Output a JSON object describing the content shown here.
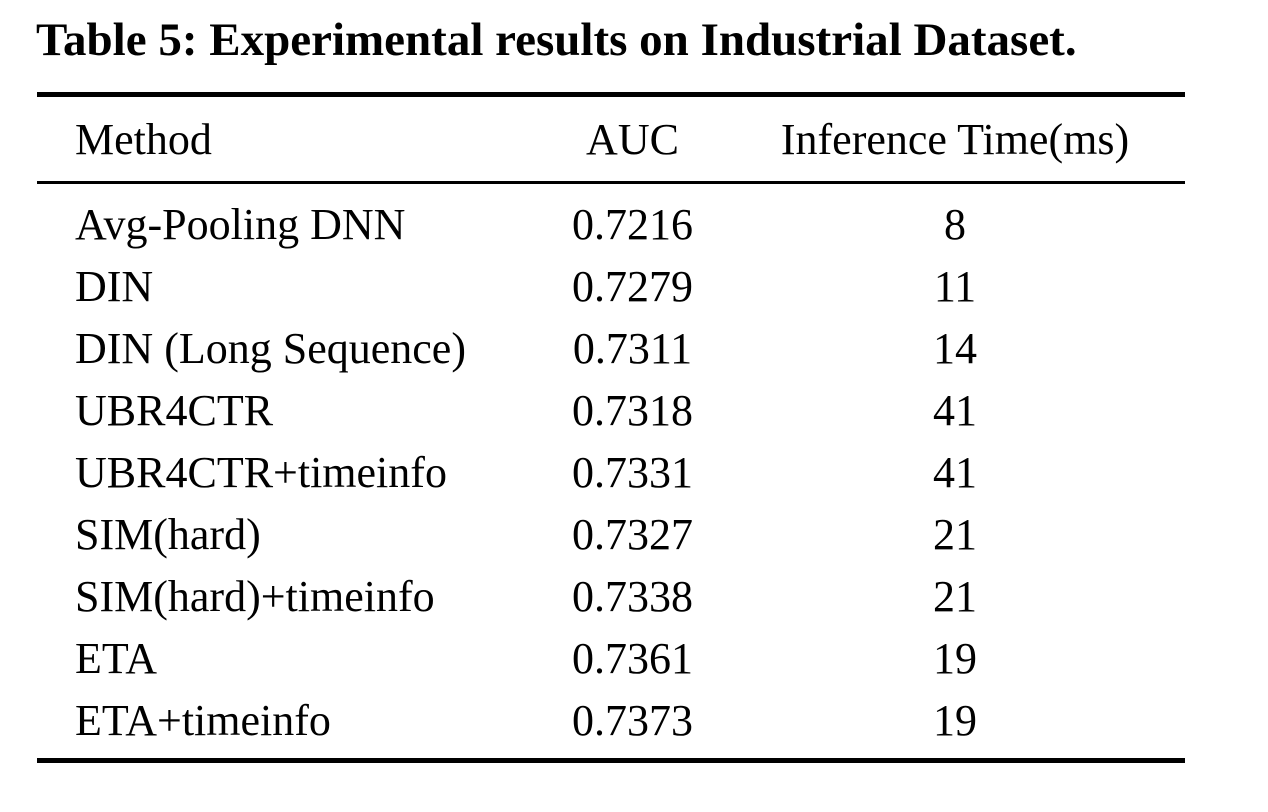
{
  "caption": "Table 5: Experimental results on Industrial Dataset.",
  "table": {
    "columns": [
      "Method",
      "AUC",
      "Inference Time(ms)"
    ],
    "rows": [
      {
        "method": "Avg-Pooling DNN",
        "auc": "0.7216",
        "time": "8"
      },
      {
        "method": "DIN",
        "auc": "0.7279",
        "time": "11"
      },
      {
        "method": "DIN (Long Sequence)",
        "auc": "0.7311",
        "time": "14"
      },
      {
        "method": "UBR4CTR",
        "auc": "0.7318",
        "time": "41"
      },
      {
        "method": "UBR4CTR+timeinfo",
        "auc": "0.7331",
        "time": "41"
      },
      {
        "method": "SIM(hard)",
        "auc": "0.7327",
        "time": "21"
      },
      {
        "method": "SIM(hard)+timeinfo",
        "auc": "0.7338",
        "time": "21"
      },
      {
        "method": "ETA",
        "auc": "0.7361",
        "time": "19"
      },
      {
        "method": "ETA+timeinfo",
        "auc": "0.7373",
        "time": "19"
      }
    ]
  },
  "chart_data": {
    "type": "table",
    "title": "Table 5: Experimental results on Industrial Dataset.",
    "columns": [
      "Method",
      "AUC",
      "Inference Time(ms)"
    ],
    "rows": [
      [
        "Avg-Pooling DNN",
        0.7216,
        8
      ],
      [
        "DIN",
        0.7279,
        11
      ],
      [
        "DIN (Long Sequence)",
        0.7311,
        14
      ],
      [
        "UBR4CTR",
        0.7318,
        41
      ],
      [
        "UBR4CTR+timeinfo",
        0.7331,
        41
      ],
      [
        "SIM(hard)",
        0.7327,
        21
      ],
      [
        "SIM(hard)+timeinfo",
        0.7338,
        21
      ],
      [
        "ETA",
        0.7361,
        19
      ],
      [
        "ETA+timeinfo",
        0.7373,
        19
      ]
    ],
    "text_color": "#000000",
    "background_color": "#ffffff"
  }
}
